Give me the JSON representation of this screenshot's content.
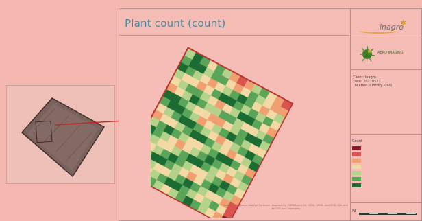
{
  "map": {
    "title": "Plant count (count)",
    "client_lines": [
      "Client: Inagro",
      "Date: 20210527",
      "Location: Chicory 2021"
    ],
    "legend_title": "Count",
    "credits": "Source: Esri, Maxar, GeoEye, Earthstar Geographics, CNES/Airbus DS, USDA, USGS, AeroGRID, IGN, and the GIS User Community",
    "scale_north": "N"
  },
  "logos": {
    "inagro": "inagro",
    "aeroimaging": "AERO IMAGING"
  },
  "colors": {
    "background": "#f4b8b1",
    "title": "#3f8da6",
    "legend": [
      "#8b1a2a",
      "#d9534f",
      "#f0a070",
      "#f3d9a6",
      "#b5d28a",
      "#5aa55a",
      "#1c6b33"
    ]
  },
  "field": {
    "rows": 18,
    "cols": 14,
    "levels": [
      [
        4,
        6,
        5,
        3,
        5,
        4,
        2,
        1,
        2,
        4,
        5,
        3,
        2,
        1
      ],
      [
        5,
        6,
        6,
        4,
        5,
        5,
        3,
        2,
        3,
        5,
        4,
        3,
        2,
        2
      ],
      [
        6,
        5,
        4,
        3,
        2,
        3,
        4,
        5,
        6,
        5,
        3,
        2,
        3,
        4
      ],
      [
        4,
        3,
        3,
        2,
        3,
        5,
        6,
        6,
        5,
        4,
        5,
        4,
        5,
        3
      ],
      [
        3,
        4,
        5,
        5,
        4,
        3,
        2,
        3,
        4,
        6,
        6,
        5,
        3,
        2
      ],
      [
        2,
        3,
        4,
        6,
        5,
        4,
        4,
        5,
        5,
        4,
        3,
        3,
        4,
        5
      ],
      [
        6,
        6,
        5,
        4,
        3,
        3,
        2,
        2,
        3,
        4,
        5,
        6,
        6,
        4
      ],
      [
        5,
        6,
        6,
        5,
        4,
        2,
        3,
        4,
        5,
        6,
        5,
        4,
        3,
        3
      ],
      [
        3,
        4,
        5,
        6,
        6,
        5,
        4,
        3,
        2,
        3,
        4,
        5,
        6,
        5
      ],
      [
        2,
        3,
        3,
        4,
        5,
        6,
        6,
        5,
        4,
        3,
        2,
        3,
        4,
        6
      ],
      [
        4,
        5,
        6,
        5,
        4,
        3,
        3,
        4,
        5,
        6,
        6,
        5,
        3,
        2
      ],
      [
        6,
        5,
        4,
        3,
        2,
        3,
        4,
        5,
        6,
        5,
        4,
        3,
        4,
        5
      ],
      [
        5,
        4,
        3,
        3,
        4,
        5,
        6,
        6,
        5,
        4,
        3,
        2,
        3,
        4
      ],
      [
        3,
        3,
        4,
        5,
        6,
        5,
        4,
        3,
        3,
        4,
        5,
        6,
        5,
        3
      ],
      [
        4,
        5,
        6,
        6,
        5,
        4,
        3,
        2,
        3,
        5,
        6,
        5,
        4,
        2
      ],
      [
        6,
        5,
        4,
        3,
        3,
        4,
        5,
        6,
        5,
        4,
        3,
        3,
        2,
        1
      ],
      [
        5,
        4,
        3,
        4,
        5,
        6,
        6,
        5,
        4,
        3,
        4,
        5,
        3,
        1
      ],
      [
        3,
        4,
        5,
        5,
        4,
        3,
        4,
        5,
        6,
        5,
        4,
        3,
        2,
        0
      ]
    ]
  }
}
